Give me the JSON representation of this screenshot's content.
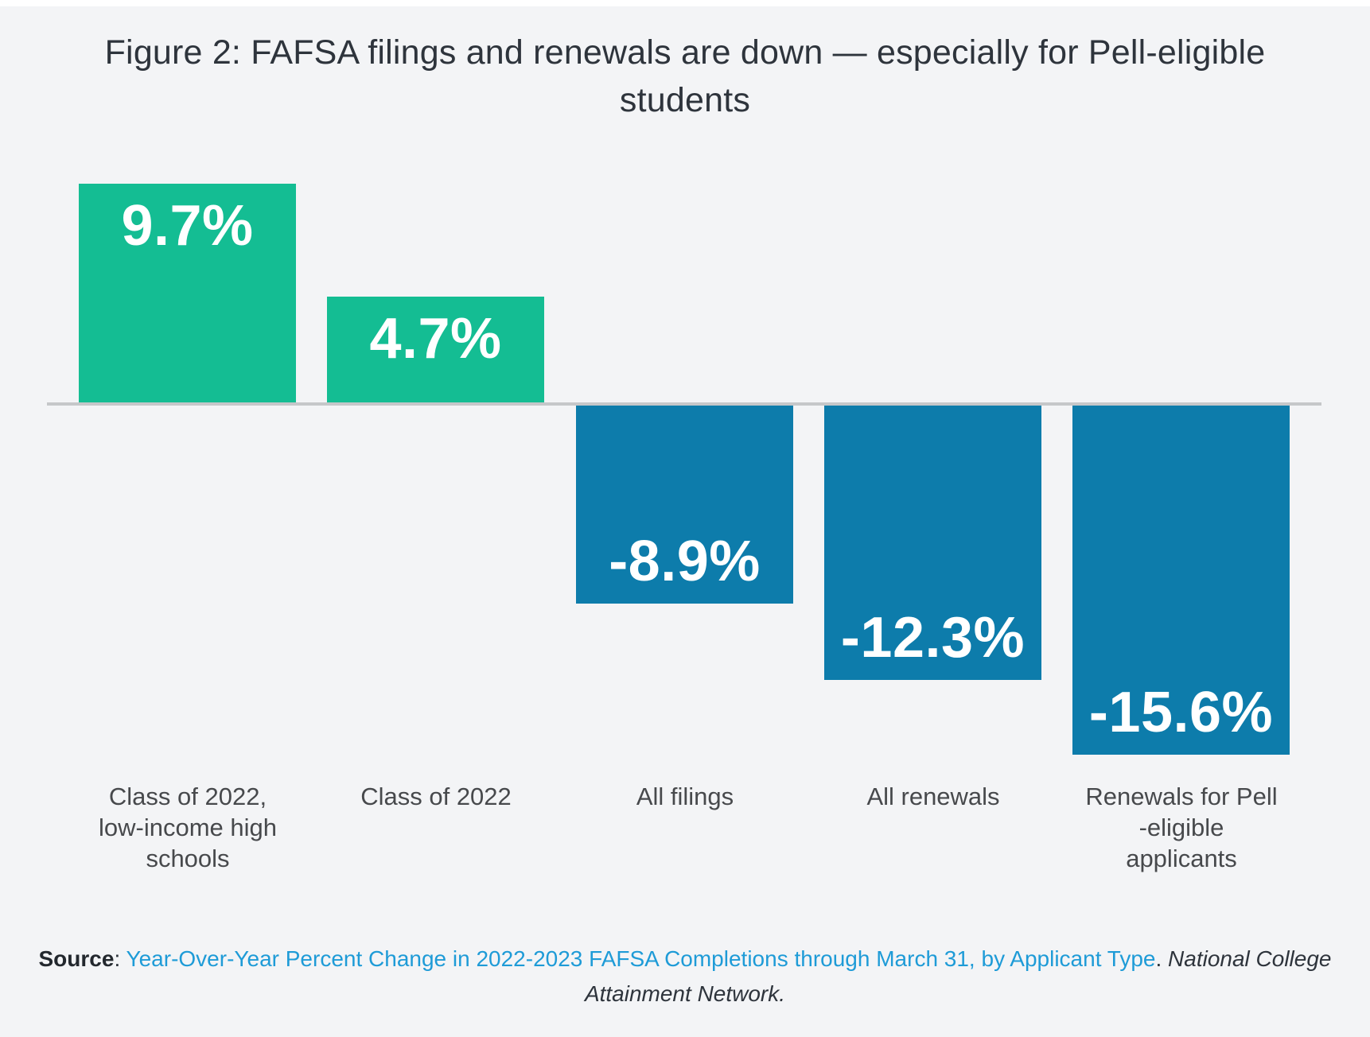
{
  "header": {
    "title": "Figure 2: FAFSA filings and renewals are down — especially for Pell-eligible students"
  },
  "chart_data": {
    "type": "bar",
    "title": "Figure 2: FAFSA filings and renewals are down — especially for Pell-eligible students",
    "categories": [
      "Class of 2022,\nlow-income high\nschools",
      "Class of 2022",
      "All filings",
      "All renewals",
      "Renewals for Pell\n-eligible\napplicants"
    ],
    "values": [
      9.7,
      4.7,
      -8.9,
      -12.3,
      -15.6
    ],
    "value_labels": [
      "9.7%",
      "4.7%",
      "-8.9%",
      "-12.3%",
      "-15.6%"
    ],
    "xlabel": "",
    "ylabel": "",
    "ylim": [
      -16,
      10
    ],
    "baseline": 0,
    "grid": false,
    "legend": false,
    "data_labels_inside_bars": true,
    "colors": {
      "positive": "#14bd93",
      "negative": "#0d7cab",
      "axis_line": "#c5c7c9",
      "value_text": "#ffffff",
      "category_text": "#47494c",
      "background": "#f3f4f6"
    }
  },
  "source": {
    "label": "Source",
    "separator": ": ",
    "link_text": "Year-Over-Year Percent Change in 2022-2023 FAFSA Completions through March 31, by Applicant Type",
    "period": ". ",
    "org": "National College Attainment Network."
  }
}
